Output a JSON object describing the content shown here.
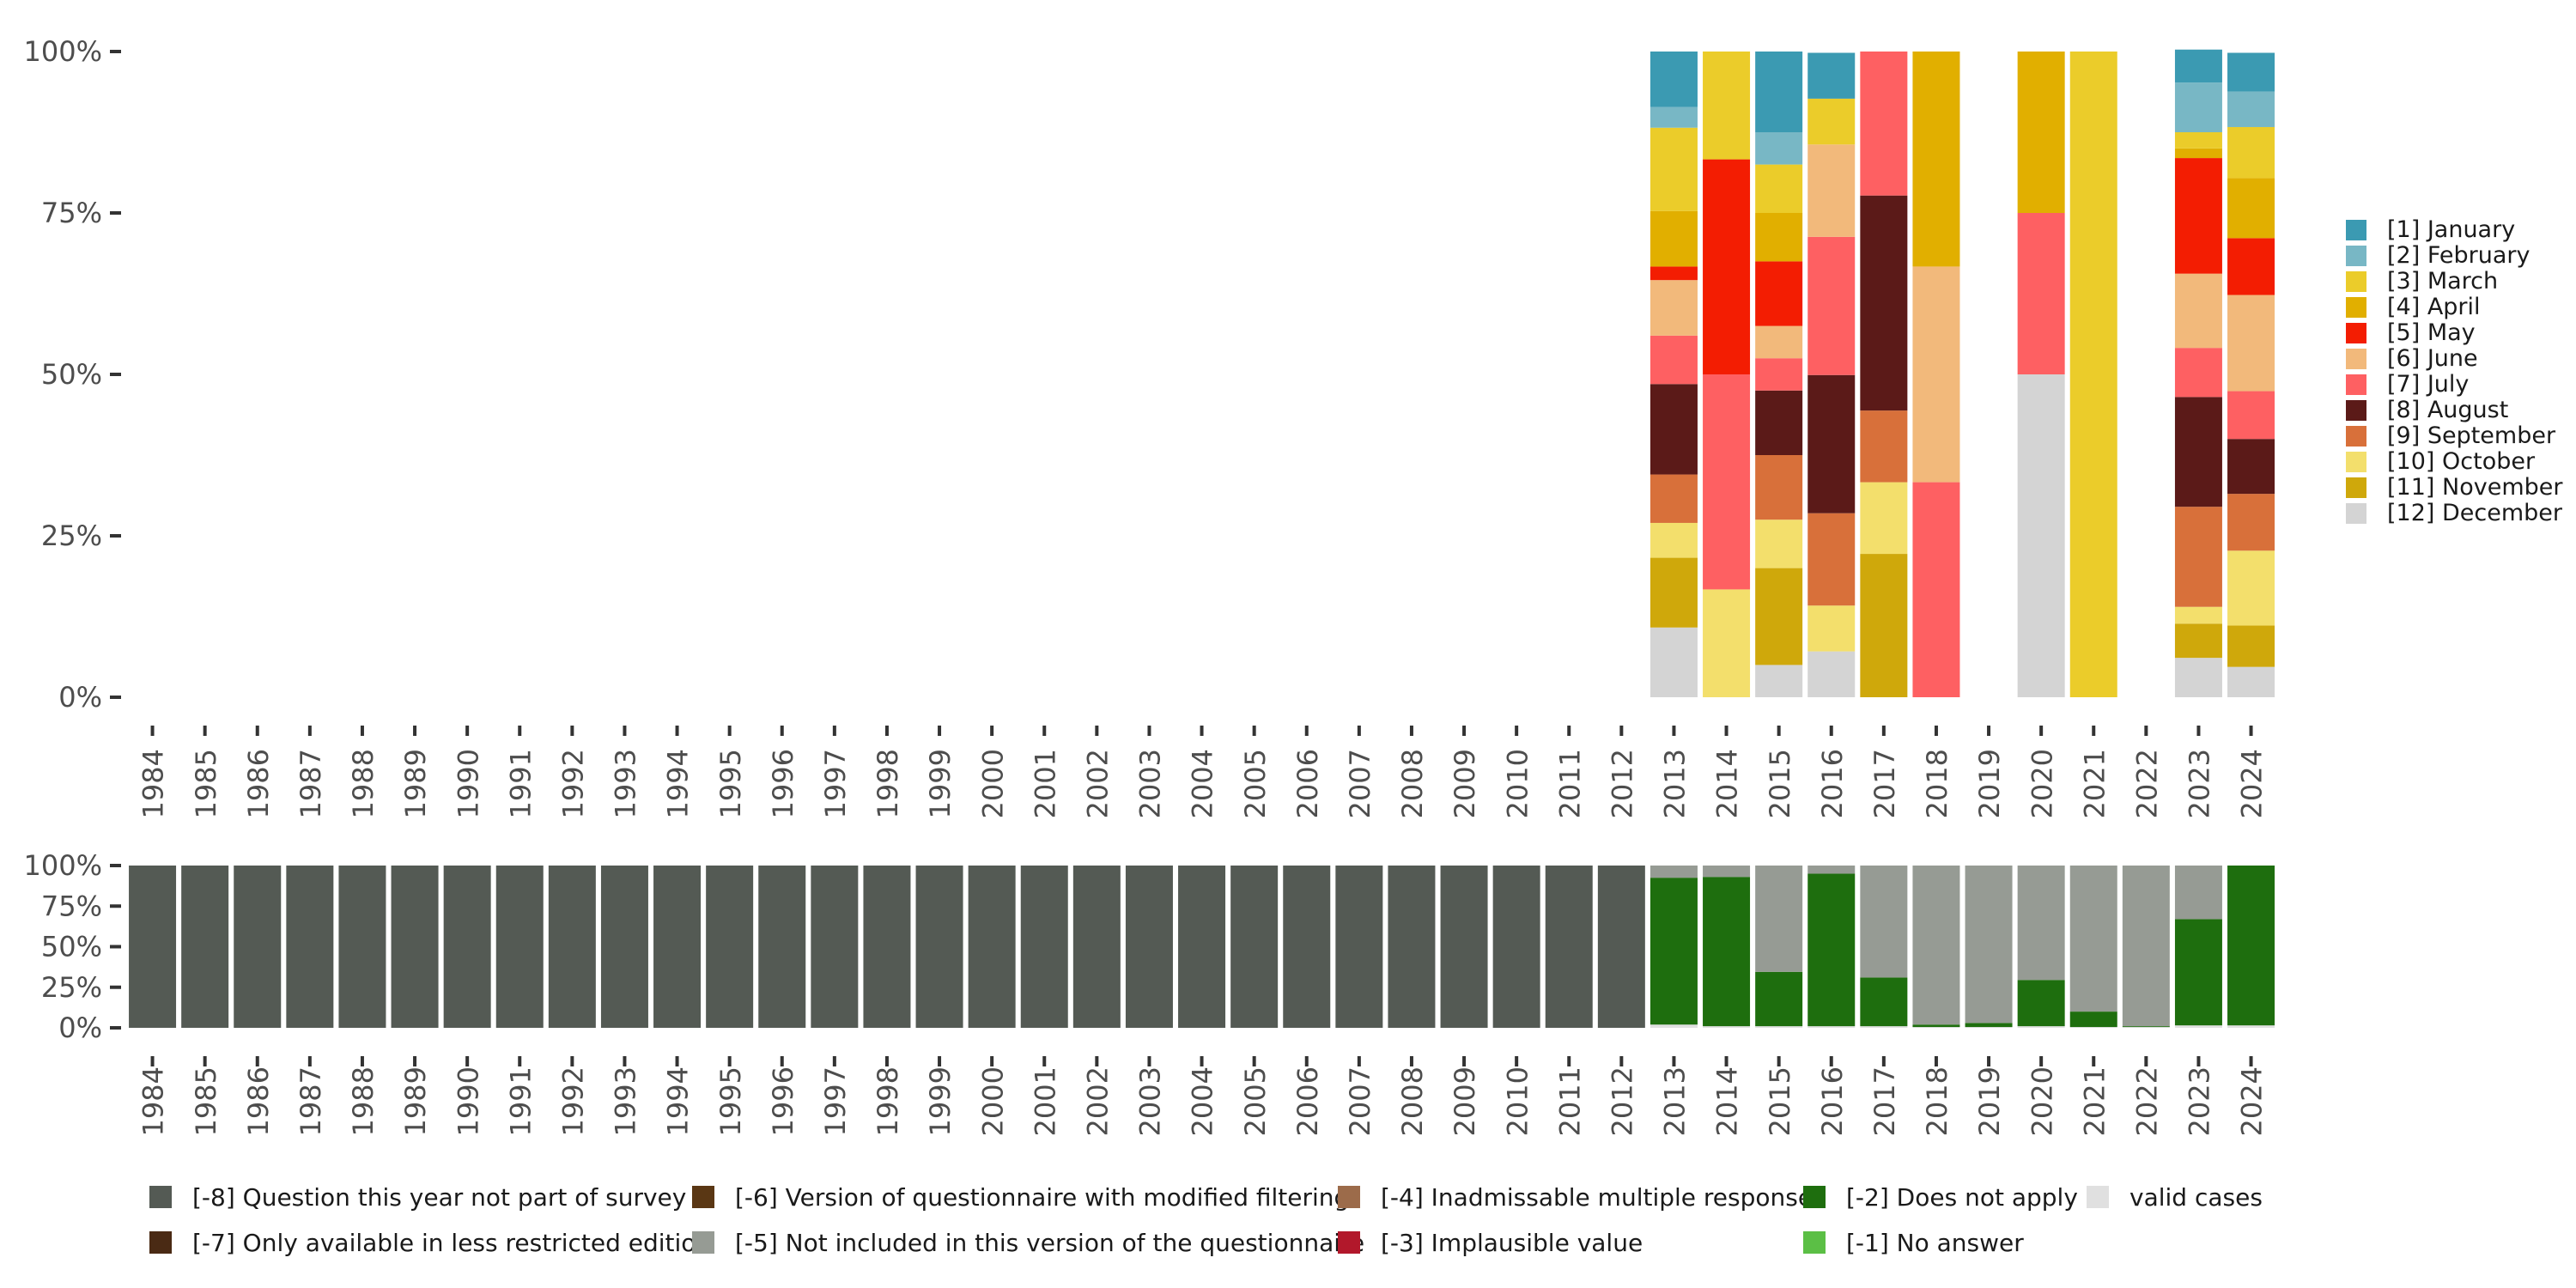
{
  "chart_data": [
    {
      "type": "bar",
      "stacked": "percent",
      "title": "",
      "xlabel": "",
      "ylabel": "",
      "ylim": [
        0,
        100
      ],
      "yticks": [
        "0%",
        "25%",
        "50%",
        "75%",
        "100%"
      ],
      "legend_position": "right",
      "categories": [
        "1984",
        "1985",
        "1986",
        "1987",
        "1988",
        "1989",
        "1990",
        "1991",
        "1992",
        "1993",
        "1994",
        "1995",
        "1996",
        "1997",
        "1998",
        "1999",
        "2000",
        "2001",
        "2002",
        "2003",
        "2004",
        "2005",
        "2006",
        "2007",
        "2008",
        "2009",
        "2010",
        "2011",
        "2012",
        "2013",
        "2014",
        "2015",
        "2016",
        "2017",
        "2018",
        "2019",
        "2020",
        "2021",
        "2022",
        "2023",
        "2024"
      ],
      "series": [
        {
          "name": "[12] December",
          "color": "#d4d4d4",
          "values": [
            0,
            0,
            0,
            0,
            0,
            0,
            0,
            0,
            0,
            0,
            0,
            0,
            0,
            0,
            0,
            0,
            0,
            0,
            0,
            0,
            0,
            0,
            0,
            0,
            0,
            0,
            0,
            0,
            0,
            10.8,
            0,
            5,
            7.1,
            0,
            0,
            0,
            50,
            0,
            0,
            6.1,
            4.7
          ]
        },
        {
          "name": "[11] November",
          "color": "#cfa80b",
          "values": [
            0,
            0,
            0,
            0,
            0,
            0,
            0,
            0,
            0,
            0,
            0,
            0,
            0,
            0,
            0,
            0,
            0,
            0,
            0,
            0,
            0,
            0,
            0,
            0,
            0,
            0,
            0,
            0,
            0,
            10.8,
            0,
            15,
            0,
            22.2,
            0,
            0,
            0,
            0,
            0,
            5.3,
            6.4
          ]
        },
        {
          "name": "[10] October",
          "color": "#f3df6c",
          "values": [
            0,
            0,
            0,
            0,
            0,
            0,
            0,
            0,
            0,
            0,
            0,
            0,
            0,
            0,
            0,
            0,
            0,
            0,
            0,
            0,
            0,
            0,
            0,
            0,
            0,
            0,
            0,
            0,
            0,
            5.4,
            16.7,
            7.5,
            7.1,
            11.1,
            0,
            0,
            0,
            0,
            0,
            2.6,
            11.6
          ]
        },
        {
          "name": "[9] September",
          "color": "#d8703a",
          "values": [
            0,
            0,
            0,
            0,
            0,
            0,
            0,
            0,
            0,
            0,
            0,
            0,
            0,
            0,
            0,
            0,
            0,
            0,
            0,
            0,
            0,
            0,
            0,
            0,
            0,
            0,
            0,
            0,
            0,
            7.5,
            0,
            10,
            14.3,
            11.1,
            0,
            0,
            0,
            0,
            0,
            15.5,
            8.8
          ]
        },
        {
          "name": "[8] August",
          "color": "#5b1a18",
          "values": [
            0,
            0,
            0,
            0,
            0,
            0,
            0,
            0,
            0,
            0,
            0,
            0,
            0,
            0,
            0,
            0,
            0,
            0,
            0,
            0,
            0,
            0,
            0,
            0,
            0,
            0,
            0,
            0,
            0,
            14,
            0,
            10,
            21.4,
            33.3,
            0,
            0,
            0,
            0,
            0,
            17,
            8.5
          ]
        },
        {
          "name": "[7] July",
          "color": "#fe6062",
          "values": [
            0,
            0,
            0,
            0,
            0,
            0,
            0,
            0,
            0,
            0,
            0,
            0,
            0,
            0,
            0,
            0,
            0,
            0,
            0,
            0,
            0,
            0,
            0,
            0,
            0,
            0,
            0,
            0,
            0,
            7.5,
            33.3,
            5,
            21.4,
            22.3,
            33.3,
            0,
            25,
            0,
            0,
            7.6,
            7.4
          ]
        },
        {
          "name": "[6] June",
          "color": "#f2b97b",
          "values": [
            0,
            0,
            0,
            0,
            0,
            0,
            0,
            0,
            0,
            0,
            0,
            0,
            0,
            0,
            0,
            0,
            0,
            0,
            0,
            0,
            0,
            0,
            0,
            0,
            0,
            0,
            0,
            0,
            0,
            8.6,
            0,
            5,
            14.3,
            0,
            33.4,
            0,
            0,
            0,
            0,
            11.5,
            14.9
          ]
        },
        {
          "name": "[5] May",
          "color": "#f31d02",
          "values": [
            0,
            0,
            0,
            0,
            0,
            0,
            0,
            0,
            0,
            0,
            0,
            0,
            0,
            0,
            0,
            0,
            0,
            0,
            0,
            0,
            0,
            0,
            0,
            0,
            0,
            0,
            0,
            0,
            0,
            2.1,
            33.3,
            10,
            0,
            0,
            0,
            0,
            0,
            0,
            0,
            17.9,
            8.8
          ]
        },
        {
          "name": "[4] April",
          "color": "#e1af00",
          "values": [
            0,
            0,
            0,
            0,
            0,
            0,
            0,
            0,
            0,
            0,
            0,
            0,
            0,
            0,
            0,
            0,
            0,
            0,
            0,
            0,
            0,
            0,
            0,
            0,
            0,
            0,
            0,
            0,
            0,
            8.6,
            0,
            7.5,
            0,
            0,
            33.3,
            0,
            25,
            0,
            0,
            1.5,
            9.3
          ]
        },
        {
          "name": "[3] March",
          "color": "#ebcc2a",
          "values": [
            0,
            0,
            0,
            0,
            0,
            0,
            0,
            0,
            0,
            0,
            0,
            0,
            0,
            0,
            0,
            0,
            0,
            0,
            0,
            0,
            0,
            0,
            0,
            0,
            0,
            0,
            0,
            0,
            0,
            12.9,
            16.7,
            7.5,
            7.1,
            0,
            0,
            0,
            0,
            100,
            0,
            2.5,
            7.9
          ]
        },
        {
          "name": "[2] February",
          "color": "#78b7c5",
          "values": [
            0,
            0,
            0,
            0,
            0,
            0,
            0,
            0,
            0,
            0,
            0,
            0,
            0,
            0,
            0,
            0,
            0,
            0,
            0,
            0,
            0,
            0,
            0,
            0,
            0,
            0,
            0,
            0,
            0,
            3.2,
            0,
            5,
            0,
            0,
            0,
            0,
            0,
            0,
            0,
            7.7,
            5.5
          ]
        },
        {
          "name": "[1] January",
          "color": "#3b9ab2",
          "values": [
            0,
            0,
            0,
            0,
            0,
            0,
            0,
            0,
            0,
            0,
            0,
            0,
            0,
            0,
            0,
            0,
            0,
            0,
            0,
            0,
            0,
            0,
            0,
            0,
            0,
            0,
            0,
            0,
            0,
            8.6,
            0,
            12.5,
            7.1,
            0,
            0,
            0,
            0,
            0,
            0,
            5.1,
            6.0
          ]
        }
      ],
      "legend_entries": [
        "[1] January",
        "[2] February",
        "[3] March",
        "[4] April",
        "[5] May",
        "[6] June",
        "[7] July",
        "[8] August",
        "[9] September",
        "[10] October",
        "[11] November",
        "[12] December"
      ]
    },
    {
      "type": "bar",
      "stacked": "percent",
      "title": "",
      "xlabel": "",
      "ylabel": "",
      "ylim": [
        0,
        100
      ],
      "yticks": [
        "0%",
        "25%",
        "50%",
        "75%",
        "100%"
      ],
      "legend_position": "bottom",
      "categories": [
        "1984",
        "1985",
        "1986",
        "1987",
        "1988",
        "1989",
        "1990",
        "1991",
        "1992",
        "1993",
        "1994",
        "1995",
        "1996",
        "1997",
        "1998",
        "1999",
        "2000",
        "2001",
        "2002",
        "2003",
        "2004",
        "2005",
        "2006",
        "2007",
        "2008",
        "2009",
        "2010",
        "2011",
        "2012",
        "2013",
        "2014",
        "2015",
        "2016",
        "2017",
        "2018",
        "2019",
        "2020",
        "2021",
        "2022",
        "2023",
        "2024"
      ],
      "series": [
        {
          "name": "valid cases",
          "color": "#e0e0e0",
          "values": [
            0,
            0,
            0,
            0,
            0,
            0,
            0,
            0,
            0,
            0,
            0,
            0,
            0,
            0,
            0,
            0,
            0,
            0,
            0,
            0,
            0,
            0,
            0,
            0,
            0,
            0,
            0,
            0,
            0,
            2,
            1,
            1,
            1,
            1,
            0.5,
            0.5,
            1,
            0.5,
            0.5,
            1.5,
            1.5
          ]
        },
        {
          "name": "[-1] No answer",
          "color": "#5bbf45",
          "values": [
            0,
            0,
            0,
            0,
            0,
            0,
            0,
            0,
            0,
            0,
            0,
            0,
            0,
            0,
            0,
            0,
            0,
            0,
            0,
            0,
            0,
            0,
            0,
            0,
            0,
            0,
            0,
            0,
            0,
            0,
            0,
            0,
            0,
            0,
            0,
            0,
            0,
            0,
            0,
            0,
            0
          ]
        },
        {
          "name": "[-2] Does not apply",
          "color": "#1e6e0e",
          "values": [
            0,
            0,
            0,
            0,
            0,
            0,
            0,
            0,
            0,
            0,
            0,
            0,
            0,
            0,
            0,
            0,
            0,
            0,
            0,
            0,
            0,
            0,
            0,
            0,
            0,
            0,
            0,
            0,
            0,
            90.5,
            92,
            33.5,
            94,
            30,
            1.5,
            2.5,
            28.5,
            9.5,
            0.5,
            65.5,
            98.5
          ]
        },
        {
          "name": "[-3] Implausible value",
          "color": "#b2182b",
          "values": [
            0,
            0,
            0,
            0,
            0,
            0,
            0,
            0,
            0,
            0,
            0,
            0,
            0,
            0,
            0,
            0,
            0,
            0,
            0,
            0,
            0,
            0,
            0,
            0,
            0,
            0,
            0,
            0,
            0,
            0,
            0,
            0,
            0,
            0,
            0,
            0,
            0,
            0,
            0,
            0,
            0
          ]
        },
        {
          "name": "[-4] Inadmissable multiple response",
          "color": "#9c6b4a",
          "values": [
            0,
            0,
            0,
            0,
            0,
            0,
            0,
            0,
            0,
            0,
            0,
            0,
            0,
            0,
            0,
            0,
            0,
            0,
            0,
            0,
            0,
            0,
            0,
            0,
            0,
            0,
            0,
            0,
            0,
            0,
            0,
            0,
            0,
            0,
            0,
            0,
            0,
            0,
            0,
            0,
            0
          ]
        },
        {
          "name": "[-5] Not included in this version of the questionnaire",
          "color": "#969b94",
          "values": [
            0,
            0,
            0,
            0,
            0,
            0,
            0,
            0,
            0,
            0,
            0,
            0,
            0,
            0,
            0,
            0,
            0,
            0,
            0,
            0,
            0,
            0,
            0,
            0,
            0,
            0,
            0,
            0,
            0,
            7.5,
            7,
            65.5,
            5,
            69,
            98,
            97,
            70.5,
            90,
            99,
            33,
            0
          ]
        },
        {
          "name": "[-6] Version of questionnaire with modified filtering",
          "color": "#5a3714",
          "values": [
            0,
            0,
            0,
            0,
            0,
            0,
            0,
            0,
            0,
            0,
            0,
            0,
            0,
            0,
            0,
            0,
            0,
            0,
            0,
            0,
            0,
            0,
            0,
            0,
            0,
            0,
            0,
            0,
            0,
            0,
            0,
            0,
            0,
            0,
            0,
            0,
            0,
            0,
            0,
            0,
            0
          ]
        },
        {
          "name": "[-7] Only available in less restricted edition",
          "color": "#4a2a14",
          "values": [
            0,
            0,
            0,
            0,
            0,
            0,
            0,
            0,
            0,
            0,
            0,
            0,
            0,
            0,
            0,
            0,
            0,
            0,
            0,
            0,
            0,
            0,
            0,
            0,
            0,
            0,
            0,
            0,
            0,
            0,
            0,
            0,
            0,
            0,
            0,
            0,
            0,
            0,
            0,
            0,
            0
          ]
        },
        {
          "name": "[-8] Question this year not part of survey",
          "color": "#545a54",
          "values": [
            100,
            100,
            100,
            100,
            100,
            100,
            100,
            100,
            100,
            100,
            100,
            100,
            100,
            100,
            100,
            100,
            100,
            100,
            100,
            100,
            100,
            100,
            100,
            100,
            100,
            100,
            100,
            100,
            100,
            0,
            0,
            0,
            0,
            0,
            0,
            0,
            0,
            0,
            0,
            0,
            0
          ]
        }
      ],
      "legend_entries": [
        "[-8] Question this year not part of survey",
        "[-7] Only available in less restricted edition",
        "[-6] Version of questionnaire with modified filtering",
        "[-5] Not included in this version of the questionnaire",
        "[-4] Inadmissable multiple response",
        "[-3] Implausible value",
        "[-2] Does not apply",
        "[-1] No answer",
        "valid cases"
      ]
    }
  ]
}
